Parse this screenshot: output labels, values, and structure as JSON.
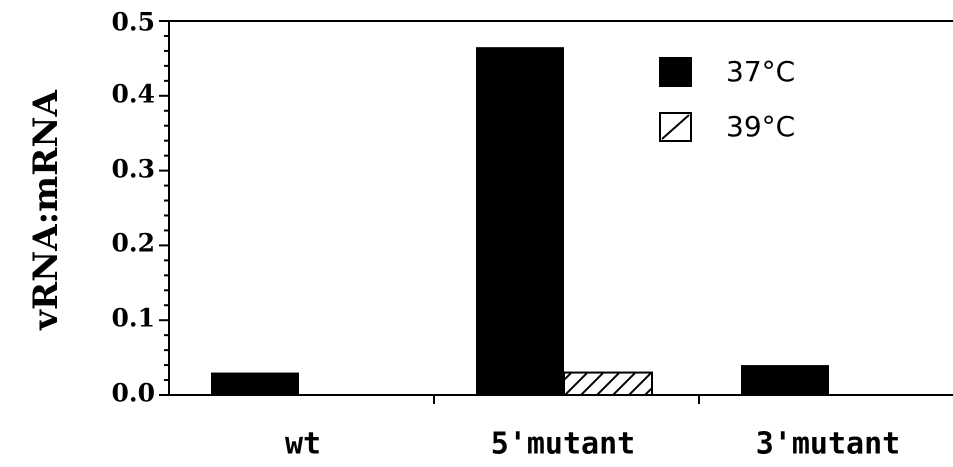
{
  "chart_data": {
    "type": "bar",
    "title": "",
    "xlabel": "",
    "ylabel": "vRNA:mRNA",
    "categories": [
      "wt",
      "5'mutant",
      "3'mutant"
    ],
    "series": [
      {
        "name": "37°C",
        "values": [
          0.03,
          0.465,
          0.04
        ],
        "fill": "solid"
      },
      {
        "name": "39°C",
        "values": [
          null,
          0.03,
          null
        ],
        "fill": "hatched"
      }
    ],
    "ylim": [
      0,
      0.5
    ],
    "yticks": [
      "0.0",
      "0.1",
      "0.2",
      "0.3",
      "0.4",
      "0.5"
    ],
    "grid": false,
    "legend_position": "top-right",
    "colors": {
      "bar": "#000000",
      "background": "#ffffff",
      "hatch": "#000000"
    }
  }
}
